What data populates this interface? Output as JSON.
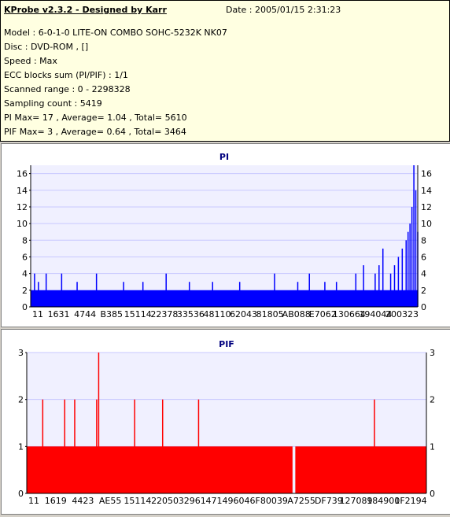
{
  "header": {
    "title": "KProbe v2.3.2 - Designed by Karr",
    "date": "Date : 2005/01/15 2:31:23",
    "lines": [
      "Model : 6-0-1-0 LITE-ON COMBO SOHC-5232K NK07",
      "Disc : DVD-ROM ,  []",
      "Speed : Max",
      "ECC blocks sum (PI/PIF) : 1/1",
      "Scanned range : 0 - 2298328",
      "Sampling count : 5419",
      "PI Max= 17 , Average= 1.04 , Total= 5610",
      "PIF Max= 3 , Average= 0.64 , Total= 3464"
    ]
  },
  "chart_data": [
    {
      "type": "bar",
      "title": "PI",
      "color": "#0000ff",
      "ylim": [
        0,
        17
      ],
      "yticks": [
        0,
        2,
        4,
        6,
        8,
        10,
        12,
        14,
        16
      ],
      "xtick_labels": [
        "11",
        "1631",
        "4744",
        "B385",
        "15114",
        "22378",
        "33536",
        "48110",
        "62043",
        "81805",
        "AB088",
        "E7062",
        "130664",
        "194044",
        "200323"
      ],
      "baseline": 2,
      "peaks": [
        [
          0.01,
          4
        ],
        [
          0.02,
          3
        ],
        [
          0.04,
          4
        ],
        [
          0.08,
          4
        ],
        [
          0.12,
          3
        ],
        [
          0.17,
          4
        ],
        [
          0.24,
          3
        ],
        [
          0.29,
          3
        ],
        [
          0.35,
          4
        ],
        [
          0.41,
          3
        ],
        [
          0.47,
          3
        ],
        [
          0.54,
          3
        ],
        [
          0.63,
          4
        ],
        [
          0.69,
          3
        ],
        [
          0.72,
          4
        ],
        [
          0.76,
          3
        ],
        [
          0.79,
          3
        ],
        [
          0.84,
          4
        ],
        [
          0.86,
          5
        ],
        [
          0.89,
          4
        ],
        [
          0.9,
          5
        ],
        [
          0.91,
          7
        ],
        [
          0.93,
          4
        ],
        [
          0.94,
          5
        ],
        [
          0.95,
          6
        ],
        [
          0.96,
          7
        ],
        [
          0.97,
          8
        ],
        [
          0.975,
          9
        ],
        [
          0.98,
          10
        ],
        [
          0.985,
          12
        ],
        [
          0.99,
          17
        ],
        [
          0.995,
          14
        ],
        [
          1.0,
          9
        ]
      ],
      "grid": true
    },
    {
      "type": "bar",
      "title": "PIF",
      "color": "#ff0000",
      "ylim": [
        0,
        3
      ],
      "yticks": [
        0,
        1,
        2,
        3
      ],
      "xtick_labels": [
        "11",
        "1619",
        "4423",
        "AE55",
        "15114",
        "22050",
        "32961",
        "47149",
        "6046F",
        "80039",
        "A7255",
        "DF739",
        "127089",
        "184900",
        "1F2194"
      ],
      "baseline": 1,
      "peaks": [
        [
          0.04,
          2
        ],
        [
          0.095,
          2
        ],
        [
          0.12,
          2
        ],
        [
          0.175,
          2
        ],
        [
          0.18,
          3
        ],
        [
          0.27,
          2
        ],
        [
          0.34,
          2
        ],
        [
          0.43,
          2
        ],
        [
          0.87,
          2
        ]
      ],
      "gap": [
        0.665,
        0.672
      ],
      "grid": true
    }
  ]
}
